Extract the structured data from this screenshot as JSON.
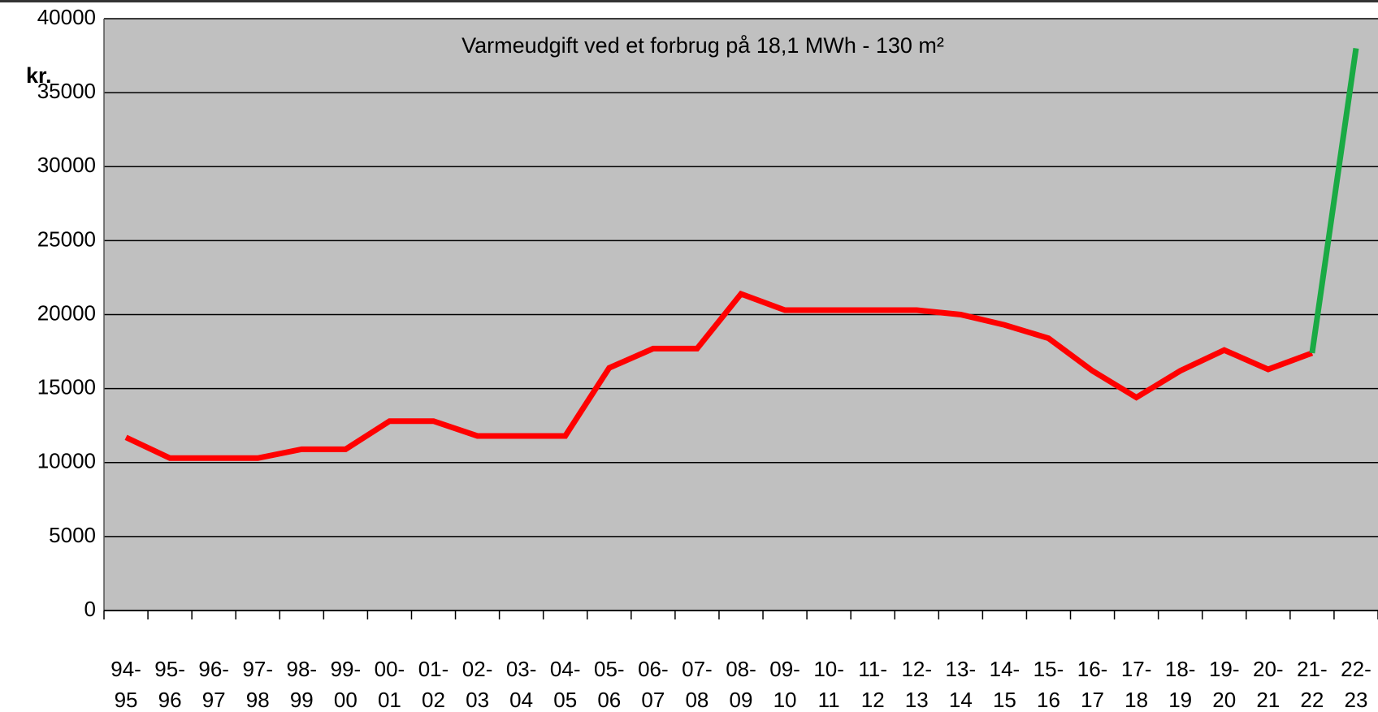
{
  "chart_data": {
    "type": "line",
    "title": "Varmeudgift  ved et forbrug på 18,1 MWh - 130 m²",
    "y_label": "kr.",
    "categories": [
      "94-\n95",
      "95-\n96",
      "96-\n97",
      "97-\n98",
      "98-\n99",
      "99-\n00",
      "00-\n01",
      "01-\n02",
      "02-\n03",
      "03-\n04",
      "04-\n05",
      "05-\n06",
      "06-\n07",
      "07-\n08",
      "08-\n09",
      "09-\n10",
      "10-\n11",
      "11-\n12",
      "12-\n13",
      "13-\n14",
      "14-\n15",
      "15-\n16",
      "16-\n17",
      "17-\n18",
      "18-\n19",
      "19-\n20",
      "20-\n21",
      "21-\n22",
      "22-\n23"
    ],
    "series": [
      {
        "color": "#ff0000",
        "values": [
          11700,
          10300,
          10300,
          10300,
          10900,
          10900,
          12800,
          12800,
          11800,
          11800,
          11800,
          16400,
          17700,
          17700,
          21400,
          20300,
          20300,
          20300,
          20300,
          20000,
          19300,
          18400,
          16200,
          14400,
          16200,
          17600,
          16300,
          17400,
          null
        ]
      },
      {
        "color": "#1aaa44",
        "values": [
          null,
          null,
          null,
          null,
          null,
          null,
          null,
          null,
          null,
          null,
          null,
          null,
          null,
          null,
          null,
          null,
          null,
          null,
          null,
          null,
          null,
          null,
          null,
          null,
          null,
          null,
          null,
          17400,
          38000
        ]
      }
    ],
    "ylim": [
      0,
      40000
    ],
    "yticks": [
      0,
      5000,
      10000,
      15000,
      20000,
      25000,
      30000,
      35000,
      40000
    ],
    "grid": true,
    "plot_background": "#c0c0c0"
  }
}
